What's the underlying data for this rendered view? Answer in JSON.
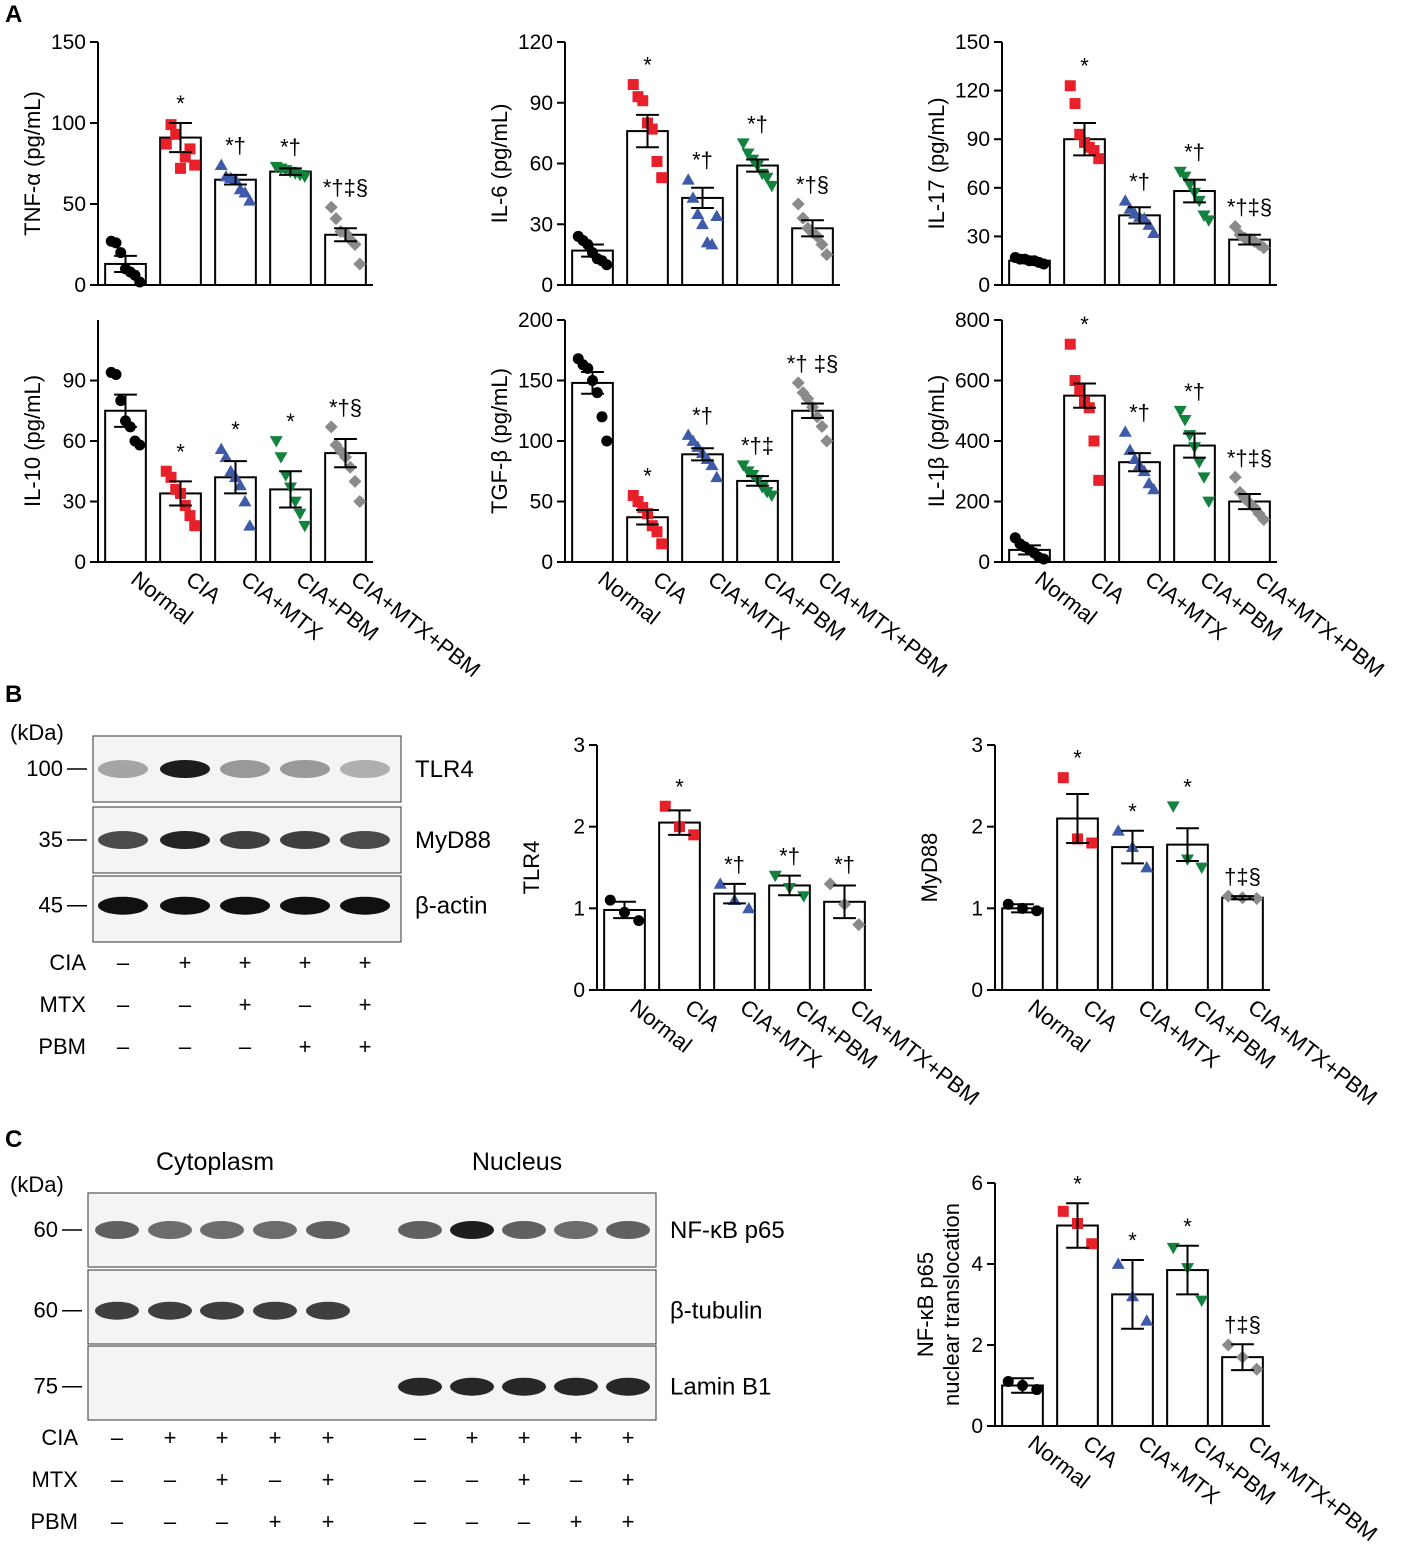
{
  "panel_letters": [
    "A",
    "B",
    "C"
  ],
  "groups": [
    "Normal",
    "CIA",
    "CIA+MTX",
    "CIA+PBM",
    "CIA+MTX+PBM"
  ],
  "colors": {
    "Normal": "#000000",
    "CIA": "#e8202a",
    "CIA+MTX": "#3e5ba9",
    "CIA+PBM": "#13823f",
    "CIA+MTX+PBM": "#8a8a8a"
  },
  "markers": [
    "circle",
    "square",
    "triangle-up",
    "triangle-down",
    "diamond"
  ],
  "chart_data": [
    {
      "id": "tnfa",
      "type": "bar",
      "ylabel": "TNF-α (pg/mL)",
      "yticks": [
        "0",
        "50",
        "100",
        "150"
      ],
      "ylim": [
        0,
        150
      ],
      "categories_shown": false,
      "series": [
        {
          "name": "mean",
          "values": [
            13,
            91,
            65,
            70,
            31
          ]
        }
      ],
      "error": [
        5,
        9,
        3,
        2,
        4
      ],
      "points": [
        [
          27,
          26,
          20,
          10,
          8,
          6,
          -5
        ],
        [
          87,
          99,
          93,
          72,
          79,
          84,
          74
        ],
        [
          74,
          67,
          66,
          65,
          59,
          57,
          52
        ],
        [
          73,
          72,
          71,
          70,
          69,
          68,
          67
        ],
        [
          48,
          41,
          33,
          32,
          28,
          25,
          13
        ]
      ],
      "annotations": [
        "",
        "*",
        "*†",
        "*†",
        "*†‡§"
      ]
    },
    {
      "id": "il6",
      "type": "bar",
      "ylabel": "IL-6 (pg/mL)",
      "yticks": [
        "0",
        "30",
        "60",
        "90",
        "120"
      ],
      "ylim": [
        0,
        120
      ],
      "categories_shown": false,
      "series": [
        {
          "name": "mean",
          "values": [
            17,
            76,
            43,
            59,
            28
          ]
        }
      ],
      "error": [
        3,
        8,
        5,
        3,
        4
      ],
      "points": [
        [
          24,
          22,
          20,
          16,
          13,
          12,
          10
        ],
        [
          99,
          93,
          91,
          80,
          77,
          61,
          53
        ],
        [
          52,
          43,
          35,
          30,
          21,
          20,
          34
        ],
        [
          70,
          65,
          62,
          59,
          55,
          53,
          49
        ],
        [
          40,
          33,
          28,
          26,
          24,
          20,
          15
        ]
      ],
      "annotations": [
        "",
        "*",
        "*†",
        "*†",
        "*†§"
      ]
    },
    {
      "id": "il17",
      "type": "bar",
      "ylabel": "IL-17 (pg/mL)",
      "yticks": [
        "0",
        "30",
        "60",
        "90",
        "120",
        "150"
      ],
      "ylim": [
        0,
        150
      ],
      "categories_shown": false,
      "series": [
        {
          "name": "mean",
          "values": [
            15,
            90,
            43,
            58,
            28
          ]
        }
      ],
      "error": [
        1,
        10,
        5,
        7,
        3
      ],
      "points": [
        [
          17,
          16,
          16,
          15,
          15,
          14,
          13
        ],
        [
          123,
          112,
          93,
          88,
          85,
          83,
          78
        ],
        [
          52,
          47,
          44,
          42,
          41,
          37,
          32
        ],
        [
          70,
          67,
          62,
          57,
          52,
          43,
          40
        ],
        [
          36,
          31,
          29,
          28,
          27,
          25,
          23
        ]
      ],
      "annotations": [
        "",
        "*",
        "*†",
        "*†",
        "*†‡§"
      ]
    },
    {
      "id": "il10",
      "type": "bar",
      "ylabel": "IL-10 (pg/mL)",
      "yticks": [
        "0",
        "30",
        "60",
        "90"
      ],
      "ylim": [
        0,
        120
      ],
      "categories_shown": true,
      "series": [
        {
          "name": "mean",
          "values": [
            75,
            34,
            42,
            36,
            54
          ]
        }
      ],
      "error": [
        8,
        6,
        8,
        9,
        7
      ],
      "points": [
        [
          94,
          93,
          80,
          70,
          67,
          60,
          58
        ],
        [
          45,
          42,
          36,
          34,
          28,
          23,
          18
        ],
        [
          56,
          52,
          45,
          42,
          38,
          30,
          18
        ],
        [
          60,
          52,
          43,
          37,
          30,
          24,
          18
        ],
        [
          67,
          58,
          55,
          52,
          47,
          40,
          30
        ]
      ],
      "annotations": [
        "",
        "*",
        "*",
        "*",
        "*†§"
      ]
    },
    {
      "id": "tgfb",
      "type": "bar",
      "ylabel": "TGF-β (pg/mL)",
      "yticks": [
        "0",
        "50",
        "100",
        "150",
        "200"
      ],
      "ylim": [
        0,
        200
      ],
      "categories_shown": true,
      "series": [
        {
          "name": "mean",
          "values": [
            148,
            37,
            89,
            67,
            125
          ]
        }
      ],
      "error": [
        9,
        6,
        5,
        4,
        6
      ],
      "points": [
        [
          168,
          163,
          160,
          150,
          140,
          120,
          100
        ],
        [
          55,
          50,
          45,
          40,
          30,
          25,
          15
        ],
        [
          105,
          100,
          95,
          90,
          85,
          80,
          70
        ],
        [
          80,
          75,
          72,
          68,
          62,
          58,
          55
        ],
        [
          148,
          140,
          135,
          128,
          120,
          112,
          100
        ]
      ],
      "annotations": [
        "",
        "*",
        "*†",
        "*†‡",
        "*† ‡§"
      ]
    },
    {
      "id": "il1b",
      "type": "bar",
      "ylabel": "IL-1β (pg/mL)",
      "yticks": [
        "0",
        "200",
        "400",
        "600",
        "800"
      ],
      "ylim": [
        0,
        800
      ],
      "categories_shown": true,
      "series": [
        {
          "name": "mean",
          "values": [
            40,
            550,
            330,
            385,
            200
          ]
        }
      ],
      "error": [
        15,
        40,
        30,
        40,
        25
      ],
      "points": [
        [
          80,
          60,
          50,
          40,
          30,
          15,
          5
        ],
        [
          720,
          600,
          570,
          530,
          510,
          400,
          270
        ],
        [
          430,
          370,
          340,
          320,
          300,
          260,
          240
        ],
        [
          500,
          470,
          420,
          380,
          330,
          280,
          200
        ],
        [
          280,
          230,
          210,
          195,
          180,
          160,
          140
        ]
      ],
      "annotations": [
        "",
        "*",
        "*†",
        "*†",
        "*†‡§"
      ]
    },
    {
      "id": "tlr4",
      "type": "bar",
      "ylabel": "TLR4",
      "yticks": [
        "0",
        "1",
        "2",
        "3"
      ],
      "ylim": [
        0,
        3
      ],
      "categories_shown": true,
      "series": [
        {
          "name": "mean",
          "values": [
            0.98,
            2.05,
            1.18,
            1.28,
            1.08
          ]
        }
      ],
      "error": [
        0.1,
        0.15,
        0.12,
        0.12,
        0.2
      ],
      "points": [
        [
          1.1,
          0.95,
          0.85
        ],
        [
          2.25,
          2.0,
          1.9
        ],
        [
          1.3,
          1.1,
          1.0
        ],
        [
          1.4,
          1.25,
          1.15
        ],
        [
          1.3,
          1.05,
          0.8
        ]
      ],
      "annotations": [
        "",
        "*",
        "*†",
        "*†",
        "*†"
      ]
    },
    {
      "id": "myd88",
      "type": "bar",
      "ylabel": "MyD88",
      "yticks": [
        "0",
        "1",
        "2",
        "3"
      ],
      "ylim": [
        0,
        3
      ],
      "categories_shown": true,
      "series": [
        {
          "name": "mean",
          "values": [
            1.0,
            2.1,
            1.75,
            1.78,
            1.13
          ]
        }
      ],
      "error": [
        0.05,
        0.3,
        0.2,
        0.2,
        0.02
      ],
      "points": [
        [
          1.05,
          1.0,
          0.97
        ],
        [
          2.6,
          1.85,
          1.8
        ],
        [
          1.95,
          1.75,
          1.5
        ],
        [
          2.25,
          1.6,
          1.5
        ],
        [
          1.15,
          1.13,
          1.12
        ]
      ],
      "annotations": [
        "",
        "*",
        "*",
        "*",
        "†‡§"
      ]
    },
    {
      "id": "nfkb",
      "type": "bar",
      "ylabel": "NF-κB p65",
      "ylabel2": "nuclear translocation",
      "yticks": [
        "0",
        "2",
        "4",
        "6"
      ],
      "ylim": [
        0,
        6
      ],
      "categories_shown": true,
      "series": [
        {
          "name": "mean",
          "values": [
            1.0,
            4.95,
            3.25,
            3.85,
            1.7
          ]
        }
      ],
      "error": [
        0.18,
        0.55,
        0.85,
        0.6,
        0.32
      ],
      "points": [
        [
          1.1,
          1.0,
          0.9
        ],
        [
          5.3,
          5.0,
          4.5
        ],
        [
          4.0,
          3.2,
          2.6
        ],
        [
          4.4,
          3.9,
          3.1
        ],
        [
          2.0,
          1.7,
          1.4
        ]
      ],
      "annotations": [
        "",
        "*",
        "*",
        "*",
        "†‡§"
      ]
    }
  ],
  "blot_b": {
    "kda_label": "(kDa)",
    "markers": [
      "100",
      "35",
      "45"
    ],
    "proteins": [
      "TLR4",
      "MyD88",
      "β-actin"
    ],
    "band_intensity": [
      [
        0.35,
        0.95,
        0.4,
        0.4,
        0.3
      ],
      [
        0.75,
        0.92,
        0.8,
        0.8,
        0.75
      ],
      [
        1,
        1,
        1,
        1,
        1
      ]
    ],
    "treatments": [
      {
        "label": "CIA",
        "signs": [
          "–",
          "+",
          "+",
          "+",
          "+"
        ]
      },
      {
        "label": "MTX",
        "signs": [
          "–",
          "–",
          "+",
          "–",
          "+"
        ]
      },
      {
        "label": "PBM",
        "signs": [
          "–",
          "–",
          "–",
          "+",
          "+"
        ]
      }
    ]
  },
  "blot_c": {
    "kda_label": "(kDa)",
    "headers": [
      "Cytoplasm",
      "Nucleus"
    ],
    "markers": [
      "60",
      "60",
      "75"
    ],
    "proteins": [
      "NF-κB p65",
      "β-tubulin",
      "Lamin B1"
    ],
    "band_intensity": [
      [
        0.65,
        0.6,
        0.6,
        0.6,
        0.65,
        0.65,
        0.95,
        0.65,
        0.6,
        0.65
      ],
      [
        0.8,
        0.8,
        0.8,
        0.8,
        0.8,
        0,
        0,
        0,
        0,
        0
      ],
      [
        0,
        0,
        0,
        0,
        0,
        0.9,
        0.9,
        0.9,
        0.9,
        0.9
      ]
    ],
    "treatments": [
      {
        "label": "CIA",
        "signs": [
          "–",
          "+",
          "+",
          "+",
          "+",
          "–",
          "+",
          "+",
          "+",
          "+"
        ]
      },
      {
        "label": "MTX",
        "signs": [
          "–",
          "–",
          "+",
          "–",
          "+",
          "–",
          "–",
          "+",
          "–",
          "+"
        ]
      },
      {
        "label": "PBM",
        "signs": [
          "–",
          "–",
          "–",
          "+",
          "+",
          "–",
          "–",
          "–",
          "+",
          "+"
        ]
      }
    ]
  }
}
